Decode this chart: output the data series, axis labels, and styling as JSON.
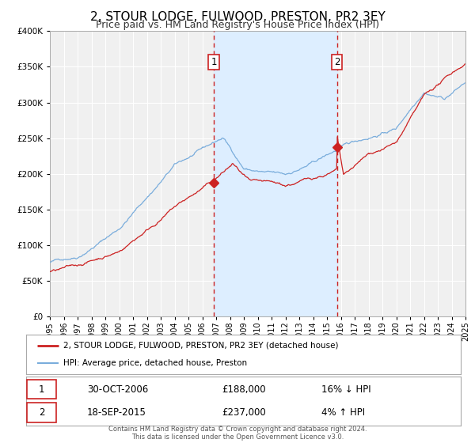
{
  "title": "2, STOUR LODGE, FULWOOD, PRESTON, PR2 3EY",
  "subtitle": "Price paid vs. HM Land Registry's House Price Index (HPI)",
  "title_fontsize": 11,
  "subtitle_fontsize": 9,
  "background_color": "#ffffff",
  "plot_bg_color": "#f0f0f0",
  "shaded_region_color": "#ddeeff",
  "grid_color": "#ffffff",
  "hpi_color": "#7aaddc",
  "price_color": "#cc2222",
  "purchase1_date_num": 2006.83,
  "purchase1_price": 188000,
  "purchase2_date_num": 2015.72,
  "purchase2_price": 237000,
  "legend_house_label": "2, STOUR LODGE, FULWOOD, PRESTON, PR2 3EY (detached house)",
  "legend_hpi_label": "HPI: Average price, detached house, Preston",
  "table_row1": [
    "1",
    "30-OCT-2006",
    "£188,000",
    "16% ↓ HPI"
  ],
  "table_row2": [
    "2",
    "18-SEP-2015",
    "£237,000",
    "4% ↑ HPI"
  ],
  "footer_text": "Contains HM Land Registry data © Crown copyright and database right 2024.\nThis data is licensed under the Open Government Licence v3.0.",
  "ylim": [
    0,
    400000
  ],
  "yticks": [
    0,
    50000,
    100000,
    150000,
    200000,
    250000,
    300000,
    350000,
    400000
  ],
  "xmin": 1995,
  "xmax": 2025,
  "xticks": [
    1995,
    1996,
    1997,
    1998,
    1999,
    2000,
    2001,
    2002,
    2003,
    2004,
    2005,
    2006,
    2007,
    2008,
    2009,
    2010,
    2011,
    2012,
    2013,
    2014,
    2015,
    2016,
    2017,
    2018,
    2019,
    2020,
    2021,
    2022,
    2023,
    2024,
    2025
  ]
}
